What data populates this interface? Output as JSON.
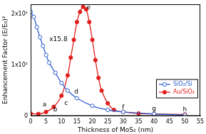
{
  "chart_data": {
    "type": "line",
    "x_label": "Thickness of MoS₂ (nm)",
    "y_label": "Enhancement Factor (E/E₀)²",
    "xlim": [
      0,
      55
    ],
    "xticks": [
      0,
      5,
      10,
      15,
      20,
      25,
      30,
      35,
      40,
      45,
      50,
      55
    ],
    "ylim": [
      0,
      220
    ],
    "yticks": [
      0,
      {
        "value": 100,
        "label": "1x10²"
      },
      {
        "value": 200,
        "label": "2x10²"
      }
    ],
    "grid": false,
    "legend": "lower right",
    "series": [
      {
        "name": "SiO₂/Si",
        "color": "#2f5fd0",
        "marker": "open circle",
        "line_style": "solid",
        "x": [
          0,
          1,
          2,
          3,
          4,
          5,
          6,
          8,
          10,
          12,
          15,
          20,
          25,
          30,
          40,
          50
        ],
        "values": [
          205,
          195,
          175,
          155,
          138,
          120,
          105,
          85,
          65,
          50,
          35,
          20,
          12,
          8,
          4,
          2
        ]
      },
      {
        "name": "Au/SiO₂",
        "color": "#e0201b",
        "marker": "filled circle",
        "line_style": "solid",
        "x": [
          0,
          2.5,
          5,
          7.5,
          10,
          12,
          13,
          14,
          15,
          16,
          17,
          18,
          19,
          20,
          21,
          22,
          23,
          25,
          27,
          30,
          35,
          40,
          50
        ],
        "values": [
          5,
          4,
          8,
          18,
          40,
          80,
          115,
          150,
          185,
          205,
          215,
          210,
          185,
          150,
          110,
          75,
          50,
          25,
          12,
          8,
          5,
          4,
          3
        ]
      }
    ],
    "annotations": [
      {
        "text": "x15.8",
        "x": 9,
        "y": 150
      },
      {
        "text": "a",
        "x": 4.5,
        "y": 22
      },
      {
        "text": "b",
        "x": 8,
        "y": 12
      },
      {
        "text": "c",
        "x": 11.5,
        "y": 25
      },
      {
        "text": "d",
        "x": 14.8,
        "y": 48
      },
      {
        "text": "e",
        "x": 18.8,
        "y": 214
      },
      {
        "text": "f",
        "x": 30,
        "y": 16
      },
      {
        "text": "g",
        "x": 40,
        "y": 14
      },
      {
        "text": "h",
        "x": 50,
        "y": 12
      }
    ]
  }
}
